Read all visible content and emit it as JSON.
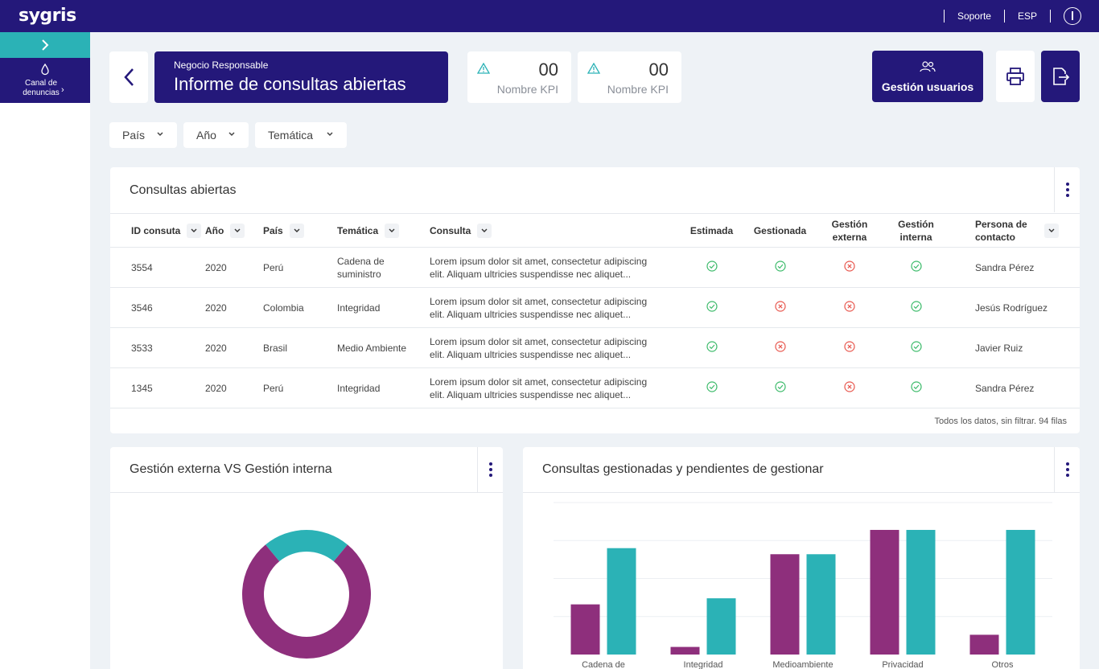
{
  "topbar": {
    "logo": "sygris",
    "support": "Soporte",
    "language": "ESP",
    "power_icon": "power-icon"
  },
  "sidebar": {
    "toggle_icon": "chevron-right-icon",
    "item": {
      "icon": "drop-icon",
      "label": "Canal de denuncias"
    }
  },
  "header": {
    "subtitle": "Negocio Responsable",
    "title": "Informe de consultas abiertas",
    "kpis": [
      {
        "value": "00",
        "name": "Nombre KPI",
        "icon": "warning-icon"
      },
      {
        "value": "00",
        "name": "Nombre KPI",
        "icon": "warning-icon"
      }
    ],
    "users_button": "Gestión usuarios"
  },
  "filters": [
    "País",
    "Año",
    "Temática"
  ],
  "table": {
    "title": "Consultas abiertas",
    "columns": [
      "ID consuta",
      "Año",
      "País",
      "Temática",
      "Consulta",
      "Estimada",
      "Gestionada",
      "Gestión externa",
      "Gestión interna",
      "Persona de contacto"
    ],
    "rows": [
      {
        "id": "3554",
        "year": "2020",
        "country": "Perú",
        "topic": "Cadena de suministro",
        "query": "Lorem ipsum dolor sit amet, consectetur adipiscing elit. Aliquam ultricies suspendisse nec aliquet...",
        "estimada": true,
        "gestionada": true,
        "externa": false,
        "interna": true,
        "contact": "Sandra Pérez"
      },
      {
        "id": "3546",
        "year": "2020",
        "country": "Colombia",
        "topic": "Integridad",
        "query": "Lorem ipsum dolor sit amet, consectetur adipiscing elit. Aliquam ultricies suspendisse nec aliquet...",
        "estimada": true,
        "gestionada": false,
        "externa": false,
        "interna": true,
        "contact": "Jesús Rodríguez"
      },
      {
        "id": "3533",
        "year": "2020",
        "country": "Brasil",
        "topic": "Medio Ambiente",
        "query": "Lorem ipsum dolor sit amet, consectetur adipiscing elit. Aliquam ultricies suspendisse nec aliquet...",
        "estimada": true,
        "gestionada": false,
        "externa": false,
        "interna": true,
        "contact": "Javier Ruiz"
      },
      {
        "id": "1345",
        "year": "2020",
        "country": "Perú",
        "topic": "Integridad",
        "query": "Lorem ipsum dolor sit amet, consectetur adipiscing elit. Aliquam ultricies suspendisse nec aliquet...",
        "estimada": true,
        "gestionada": true,
        "externa": false,
        "interna": true,
        "contact": "Sandra Pérez"
      }
    ],
    "footer": "Todos los datos, sin filtrar. 94 filas"
  },
  "colors": {
    "primary": "#24187a",
    "teal": "#2bb2b6",
    "purple": "#8e2f7c",
    "ok": "#3dbb6b",
    "error": "#e8584f"
  },
  "chart_data": [
    {
      "type": "pie",
      "title": "Gestión externa VS Gestión interna",
      "labels": [
        "",
        ""
      ],
      "values": [
        0.22,
        0.78
      ],
      "colors": [
        "#2bb2b6",
        "#8e2f7c"
      ]
    },
    {
      "type": "bar",
      "title": "Consultas gestionadas y pendientes de gestionar",
      "categories": [
        "Cadena de",
        "Integridad",
        "Medioambiente",
        "Privacidad",
        "Otros"
      ],
      "series": [
        {
          "name": "",
          "values": [
            33,
            5,
            66,
            82,
            13
          ],
          "color": "#8e2f7c"
        },
        {
          "name": "",
          "values": [
            70,
            37,
            66,
            82,
            82
          ],
          "color": "#2bb2b6"
        }
      ],
      "ylim": [
        0,
        100
      ],
      "grid": true
    }
  ]
}
